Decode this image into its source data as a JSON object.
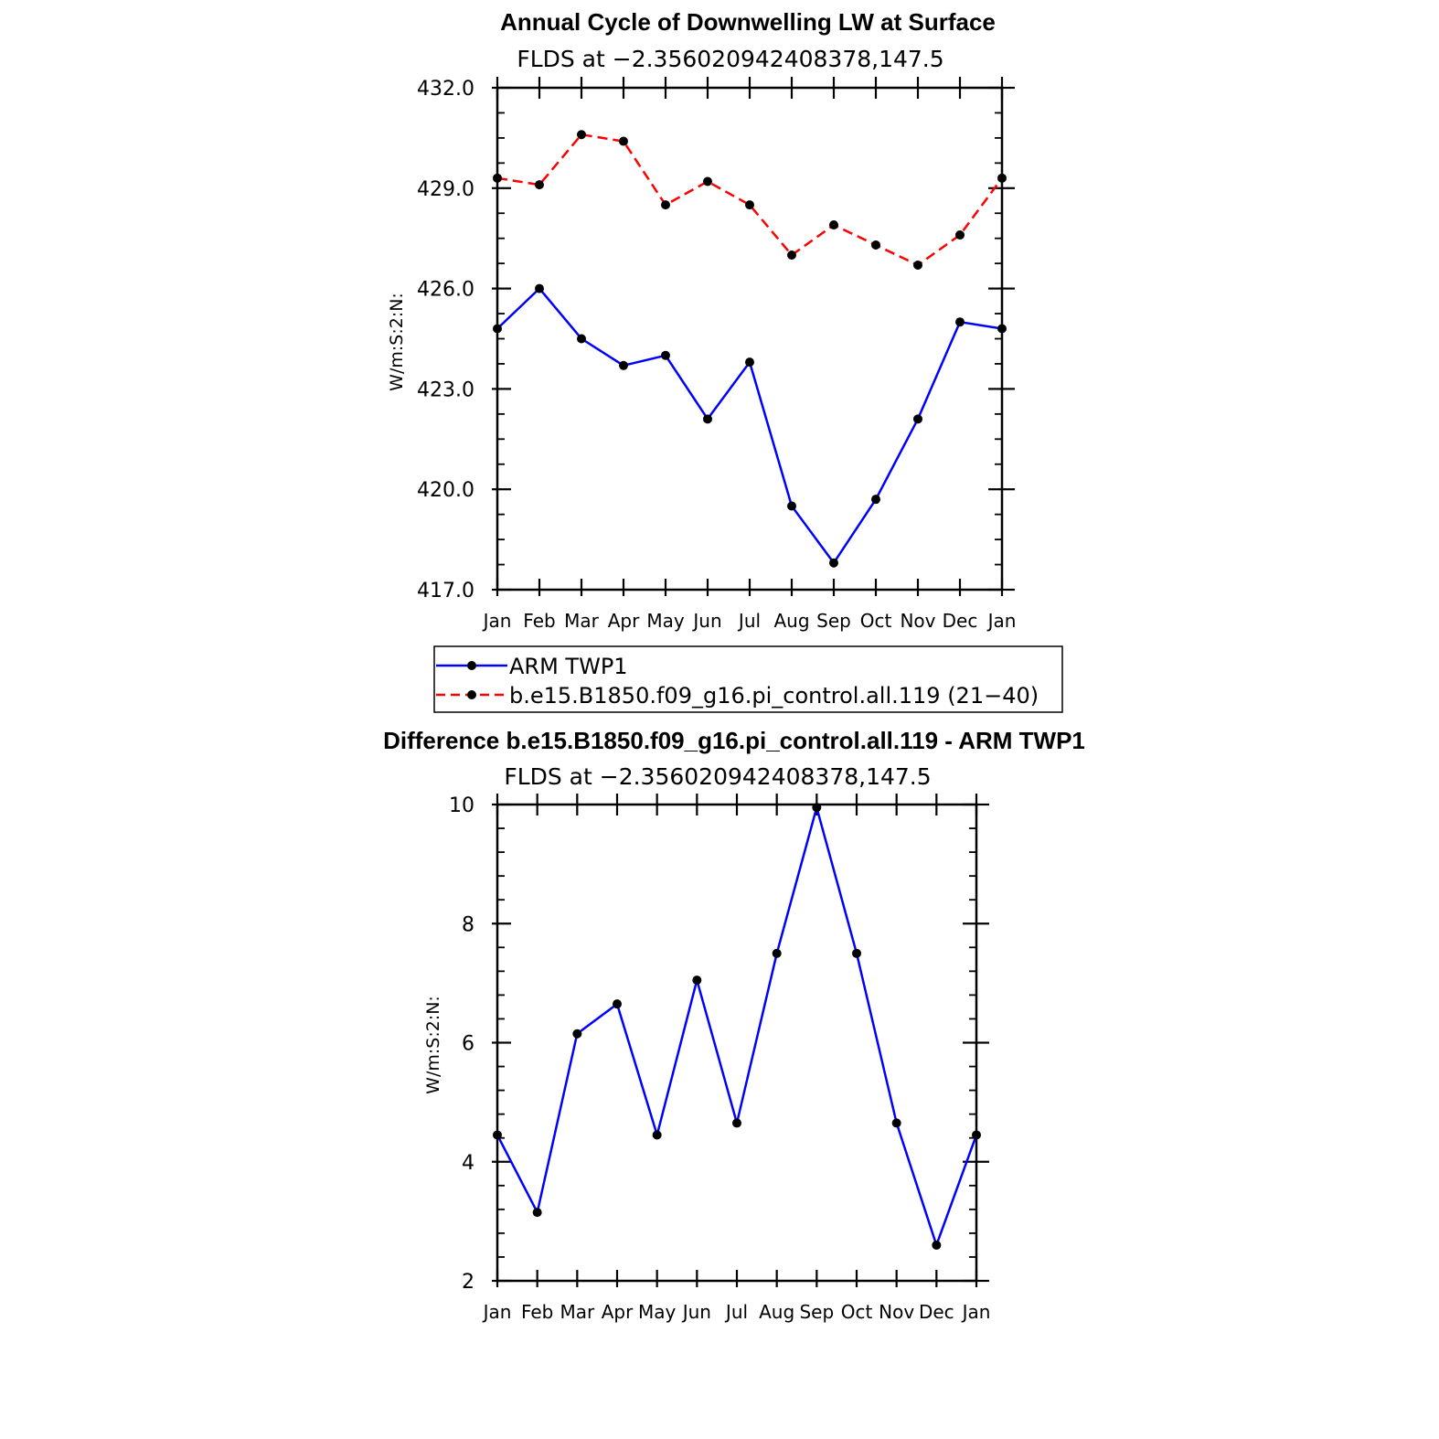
{
  "chart_data": [
    {
      "type": "line",
      "title": "Annual Cycle of Downwelling LW at Surface",
      "subtitle": "FLDS at −2.356020942408378,147.5",
      "xlabel": "",
      "ylabel": "W/m:S:2:N:",
      "categories": [
        "Jan",
        "Feb",
        "Mar",
        "Apr",
        "May",
        "Jun",
        "Jul",
        "Aug",
        "Sep",
        "Oct",
        "Nov",
        "Dec",
        "Jan"
      ],
      "yticks": [
        "417.0",
        "420.0",
        "423.0",
        "426.0",
        "429.0",
        "432.0"
      ],
      "ylim": [
        417,
        432
      ],
      "grid": false,
      "legend_position": "below",
      "series": [
        {
          "name": "ARM TWP1",
          "color": "#0000ff",
          "dash": "solid",
          "marker": "dot",
          "values": [
            424.8,
            426.0,
            424.5,
            423.7,
            424.0,
            422.1,
            423.8,
            419.5,
            417.8,
            419.7,
            422.1,
            425.0,
            424.8
          ]
        },
        {
          "name": "b.e15.B1850.f09_g16.pi_control.all.119 (21−40)",
          "color": "#ff0000",
          "dash": "dashed",
          "marker": "dot",
          "values": [
            429.3,
            429.1,
            430.6,
            430.4,
            428.5,
            429.2,
            428.5,
            427.0,
            427.9,
            427.3,
            426.7,
            427.6,
            429.3
          ]
        }
      ]
    },
    {
      "type": "line",
      "title": "Difference b.e15.B1850.f09_g16.pi_control.all.119 - ARM TWP1",
      "subtitle": "FLDS at −2.356020942408378,147.5",
      "xlabel": "",
      "ylabel": "W/m:S:2:N:",
      "categories": [
        "Jan",
        "Feb",
        "Mar",
        "Apr",
        "May",
        "Jun",
        "Jul",
        "Aug",
        "Sep",
        "Oct",
        "Nov",
        "Dec",
        "Jan"
      ],
      "yticks": [
        "2",
        "4",
        "6",
        "8",
        "10"
      ],
      "ylim": [
        2,
        10
      ],
      "grid": false,
      "series": [
        {
          "color": "#0000ff",
          "dash": "solid",
          "marker": "dot",
          "values": [
            4.45,
            3.15,
            6.15,
            6.65,
            4.45,
            7.05,
            4.65,
            7.5,
            9.95,
            7.5,
            4.65,
            2.6,
            4.45
          ]
        }
      ]
    }
  ]
}
